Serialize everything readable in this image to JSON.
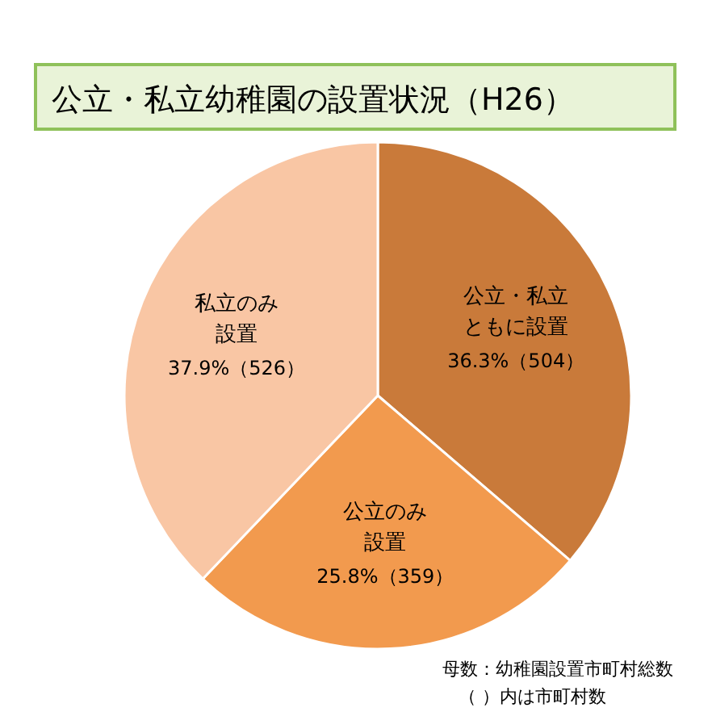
{
  "chart_data": {
    "type": "pie",
    "title": "公立・私立幼稚園の設置状況（H26）",
    "categories": [
      "公立・私立ともに設置",
      "公立のみ設置",
      "私立のみ設置"
    ],
    "values": [
      504,
      359,
      526
    ],
    "value_labels": [
      "36.3%（504）",
      "25.8%（359）",
      "37.9%（526）"
    ],
    "colors": [
      "#c97a3a",
      "#f29a4e",
      "#f9c6a4"
    ],
    "annotations": [
      "母数：幼稚園設置市町村総数",
      "（ ）内は市町村数"
    ]
  }
}
